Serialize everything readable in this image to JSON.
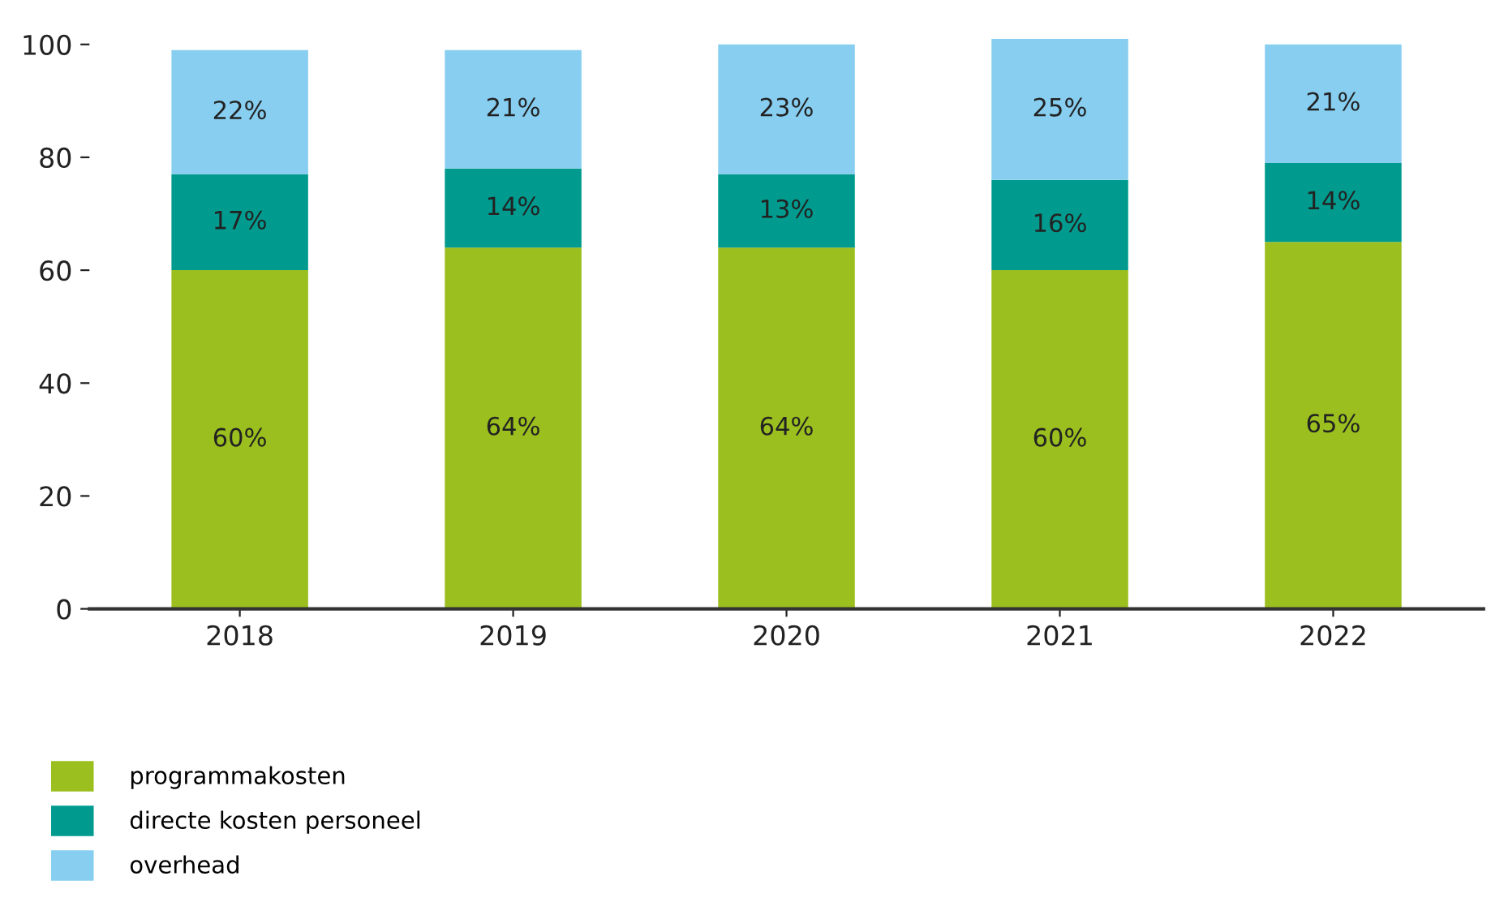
{
  "chart_data": {
    "type": "bar",
    "stacked": true,
    "categories": [
      "2018",
      "2019",
      "2020",
      "2021",
      "2022"
    ],
    "series": [
      {
        "name": "programmakosten",
        "color": "#9bbf1e",
        "values": [
          60,
          64,
          64,
          60,
          65
        ],
        "value_labels": [
          "60%",
          "64%",
          "64%",
          "60%",
          "65%"
        ]
      },
      {
        "name": "directe kosten personeel",
        "color": "#009b8e",
        "values": [
          17,
          14,
          13,
          16,
          14
        ],
        "value_labels": [
          "17%",
          "14%",
          "13%",
          "16%",
          "14%"
        ]
      },
      {
        "name": "overhead",
        "color": "#87cef0",
        "values": [
          22,
          21,
          23,
          25,
          21
        ],
        "value_labels": [
          "22%",
          "21%",
          "23%",
          "25%",
          "21%"
        ]
      }
    ],
    "ylim": [
      0,
      101
    ],
    "yticks": [
      0,
      20,
      40,
      60,
      80,
      100
    ],
    "grid": false,
    "legend": "bottom left"
  }
}
